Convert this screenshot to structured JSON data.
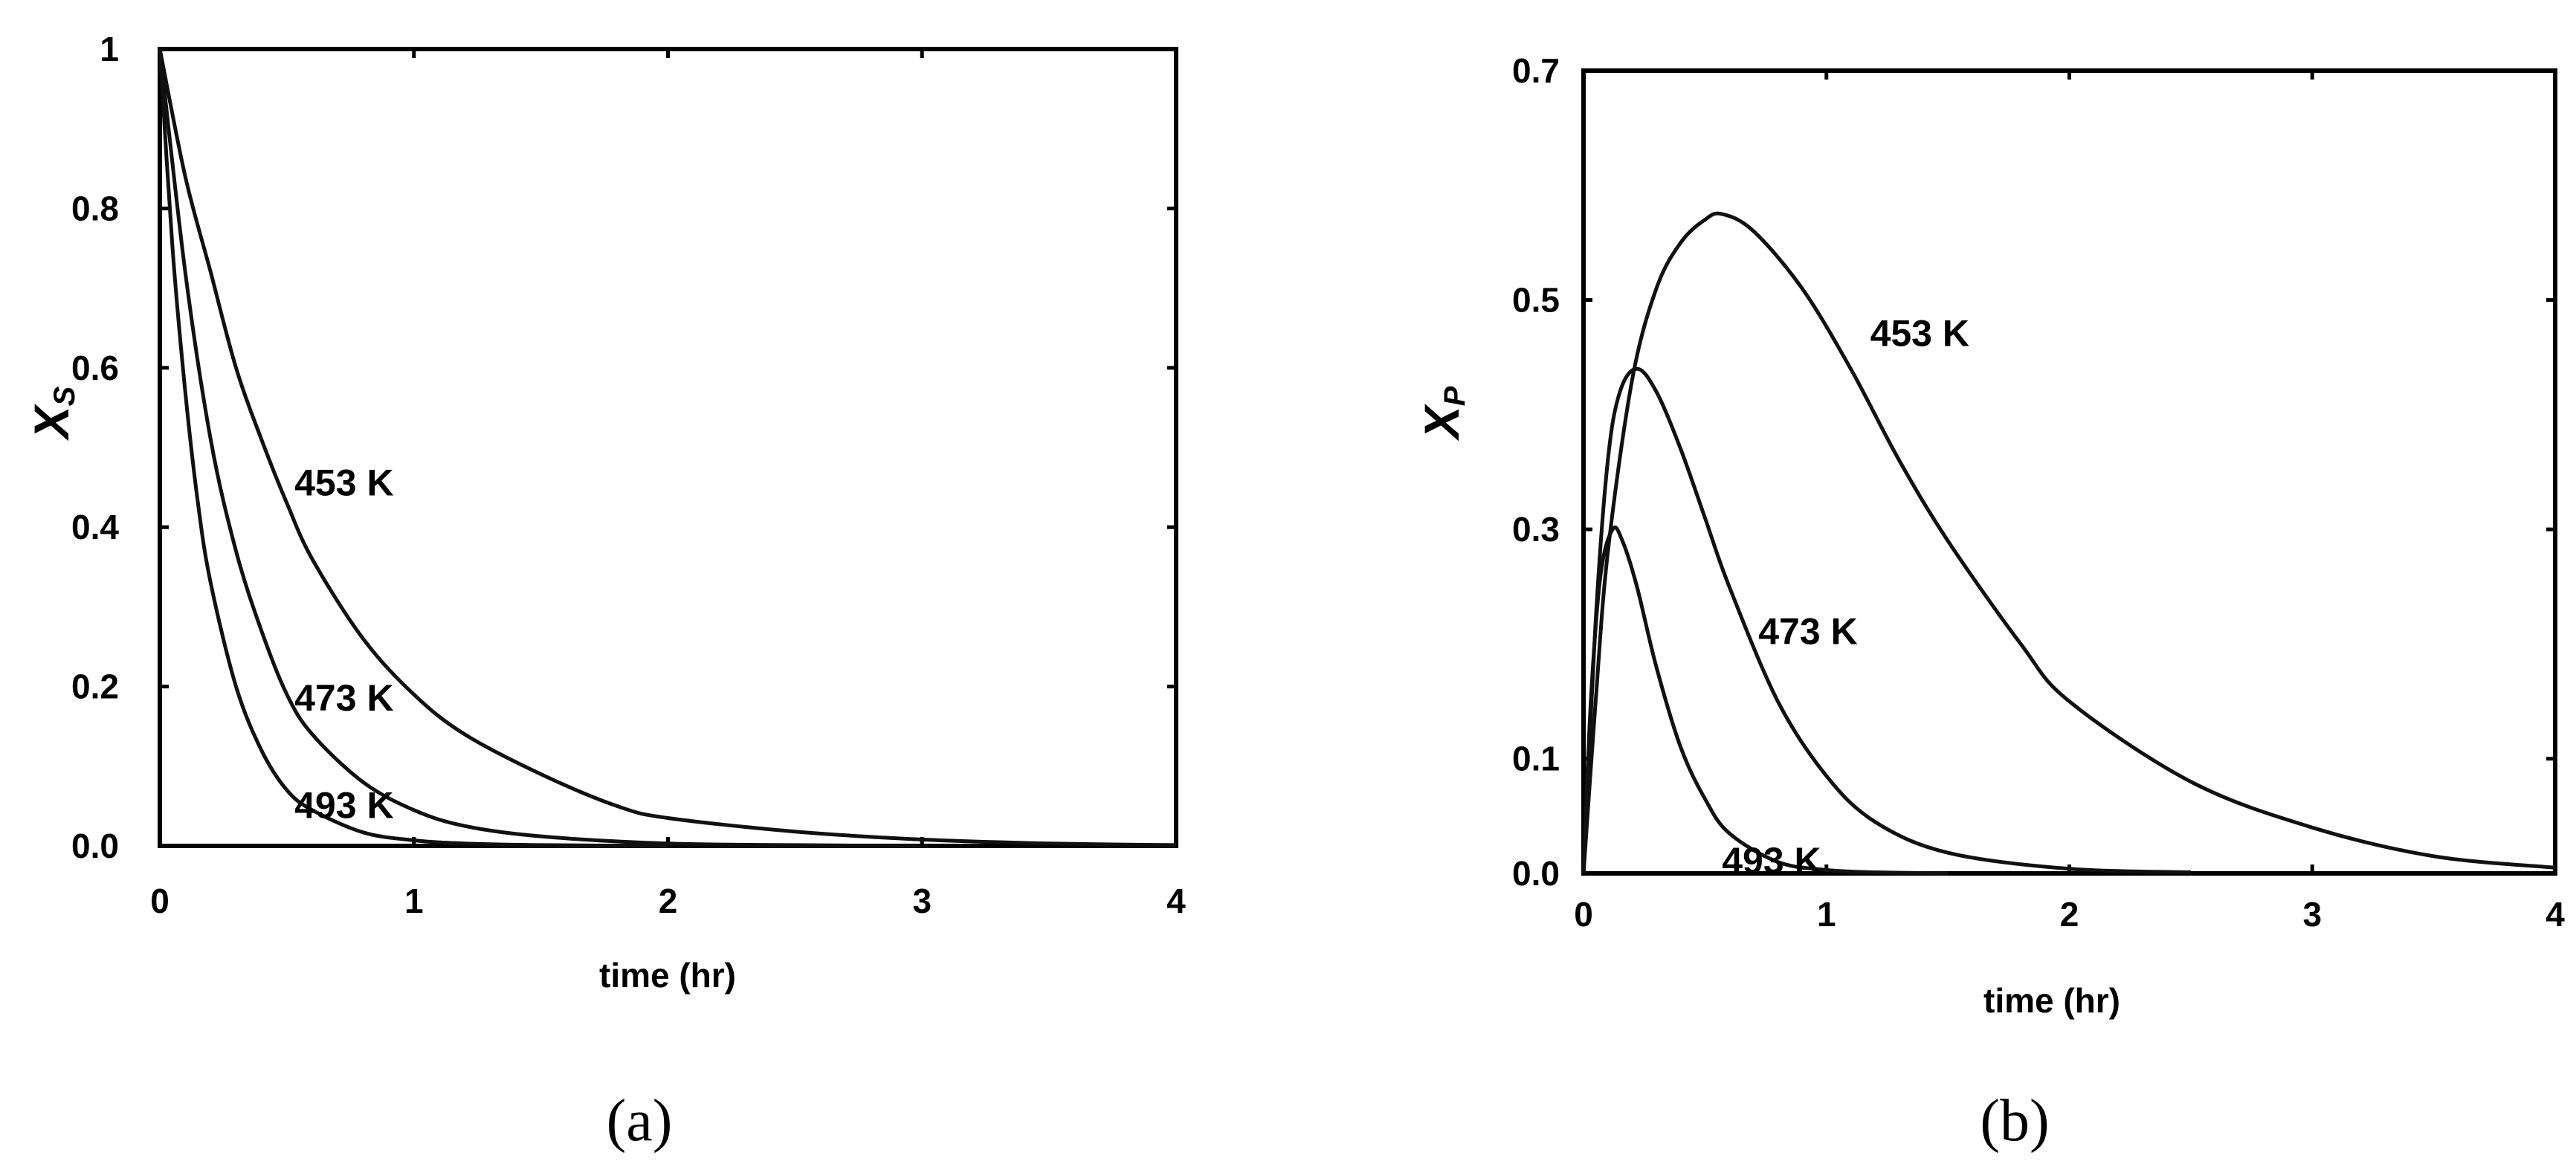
{
  "chart_data": [
    {
      "type": "line",
      "panel_label": "(a)",
      "xlabel": "time (hr)",
      "ylabel": {
        "main": "X",
        "sub": "S"
      },
      "xlim": [
        0,
        4
      ],
      "ylim": [
        0,
        1
      ],
      "xticks": [
        0,
        1,
        2,
        3,
        4
      ],
      "xtick_labels": [
        "0",
        "1",
        "2",
        "3",
        "4"
      ],
      "yticks": [
        0,
        0.2,
        0.4,
        0.6,
        0.8,
        1
      ],
      "ytick_labels": [
        "0.0",
        "0.2",
        "0.4",
        "0.6",
        "0.8",
        "1"
      ],
      "grid": false,
      "series": [
        {
          "name": "453 K",
          "label_at": [
            0.53,
            0.44
          ],
          "x": [
            0,
            0.1,
            0.2,
            0.3,
            0.4,
            0.5,
            0.6,
            0.8,
            1.0,
            1.2,
            1.5,
            1.8,
            2.0,
            2.5,
            3.0,
            3.5,
            4.0
          ],
          "y": [
            1.0,
            0.84,
            0.72,
            0.6,
            0.51,
            0.43,
            0.36,
            0.26,
            0.19,
            0.14,
            0.09,
            0.05,
            0.035,
            0.018,
            0.008,
            0.003,
            0.001
          ]
        },
        {
          "name": "473 K",
          "label_at": [
            0.53,
            0.17
          ],
          "x": [
            0,
            0.1,
            0.2,
            0.3,
            0.4,
            0.5,
            0.6,
            0.8,
            1.0,
            1.2,
            1.5,
            2.0,
            2.5,
            3.0
          ],
          "y": [
            1.0,
            0.72,
            0.51,
            0.37,
            0.27,
            0.19,
            0.14,
            0.08,
            0.045,
            0.025,
            0.012,
            0.003,
            0.001,
            0.0
          ]
        },
        {
          "name": "493 K",
          "label_at": [
            0.53,
            0.035
          ],
          "x": [
            0,
            0.05,
            0.1,
            0.15,
            0.2,
            0.3,
            0.4,
            0.5,
            0.6,
            0.8,
            1.0,
            1.2,
            1.5,
            2.0
          ],
          "y": [
            1.0,
            0.75,
            0.57,
            0.43,
            0.33,
            0.2,
            0.12,
            0.07,
            0.045,
            0.017,
            0.007,
            0.003,
            0.001,
            0.0
          ]
        }
      ]
    },
    {
      "type": "line",
      "panel_label": "(b)",
      "xlabel": "time (hr)",
      "ylabel": {
        "main": "X",
        "sub": "P"
      },
      "xlim": [
        0,
        4
      ],
      "ylim": [
        0,
        0.7
      ],
      "xticks": [
        0,
        1,
        2,
        3,
        4
      ],
      "xtick_labels": [
        "0",
        "1",
        "2",
        "3",
        "4"
      ],
      "yticks": [
        0,
        0.1,
        0.3,
        0.5,
        0.7
      ],
      "ytick_labels": [
        "0.0",
        "0.1",
        "0.3",
        "0.5",
        "0.7"
      ],
      "grid": false,
      "series": [
        {
          "name": "453 K",
          "label_at": [
            1.18,
            0.46
          ],
          "x": [
            0,
            0.05,
            0.1,
            0.2,
            0.3,
            0.4,
            0.5,
            0.57,
            0.7,
            0.9,
            1.1,
            1.3,
            1.5,
            1.8,
            2.0,
            2.5,
            3.0,
            3.5,
            4.0
          ],
          "y": [
            0.0,
            0.15,
            0.28,
            0.43,
            0.51,
            0.55,
            0.57,
            0.575,
            0.56,
            0.51,
            0.44,
            0.36,
            0.29,
            0.2,
            0.15,
            0.08,
            0.04,
            0.015,
            0.005
          ]
        },
        {
          "name": "473 K",
          "label_at": [
            0.72,
            0.2
          ],
          "x": [
            0,
            0.05,
            0.1,
            0.15,
            0.22,
            0.3,
            0.4,
            0.5,
            0.6,
            0.8,
            1.0,
            1.2,
            1.5,
            2.0,
            2.5
          ],
          "y": [
            0.0,
            0.22,
            0.36,
            0.42,
            0.44,
            0.42,
            0.37,
            0.31,
            0.25,
            0.15,
            0.085,
            0.045,
            0.018,
            0.004,
            0.001
          ]
        },
        {
          "name": "493 K",
          "label_at": [
            0.57,
            0.0
          ],
          "x": [
            0,
            0.03,
            0.07,
            0.12,
            0.16,
            0.22,
            0.3,
            0.4,
            0.5,
            0.6,
            0.8,
            1.0,
            1.2,
            1.5
          ],
          "y": [
            0.0,
            0.15,
            0.26,
            0.3,
            0.29,
            0.25,
            0.18,
            0.11,
            0.065,
            0.035,
            0.01,
            0.003,
            0.001,
            0.0
          ]
        }
      ]
    }
  ]
}
